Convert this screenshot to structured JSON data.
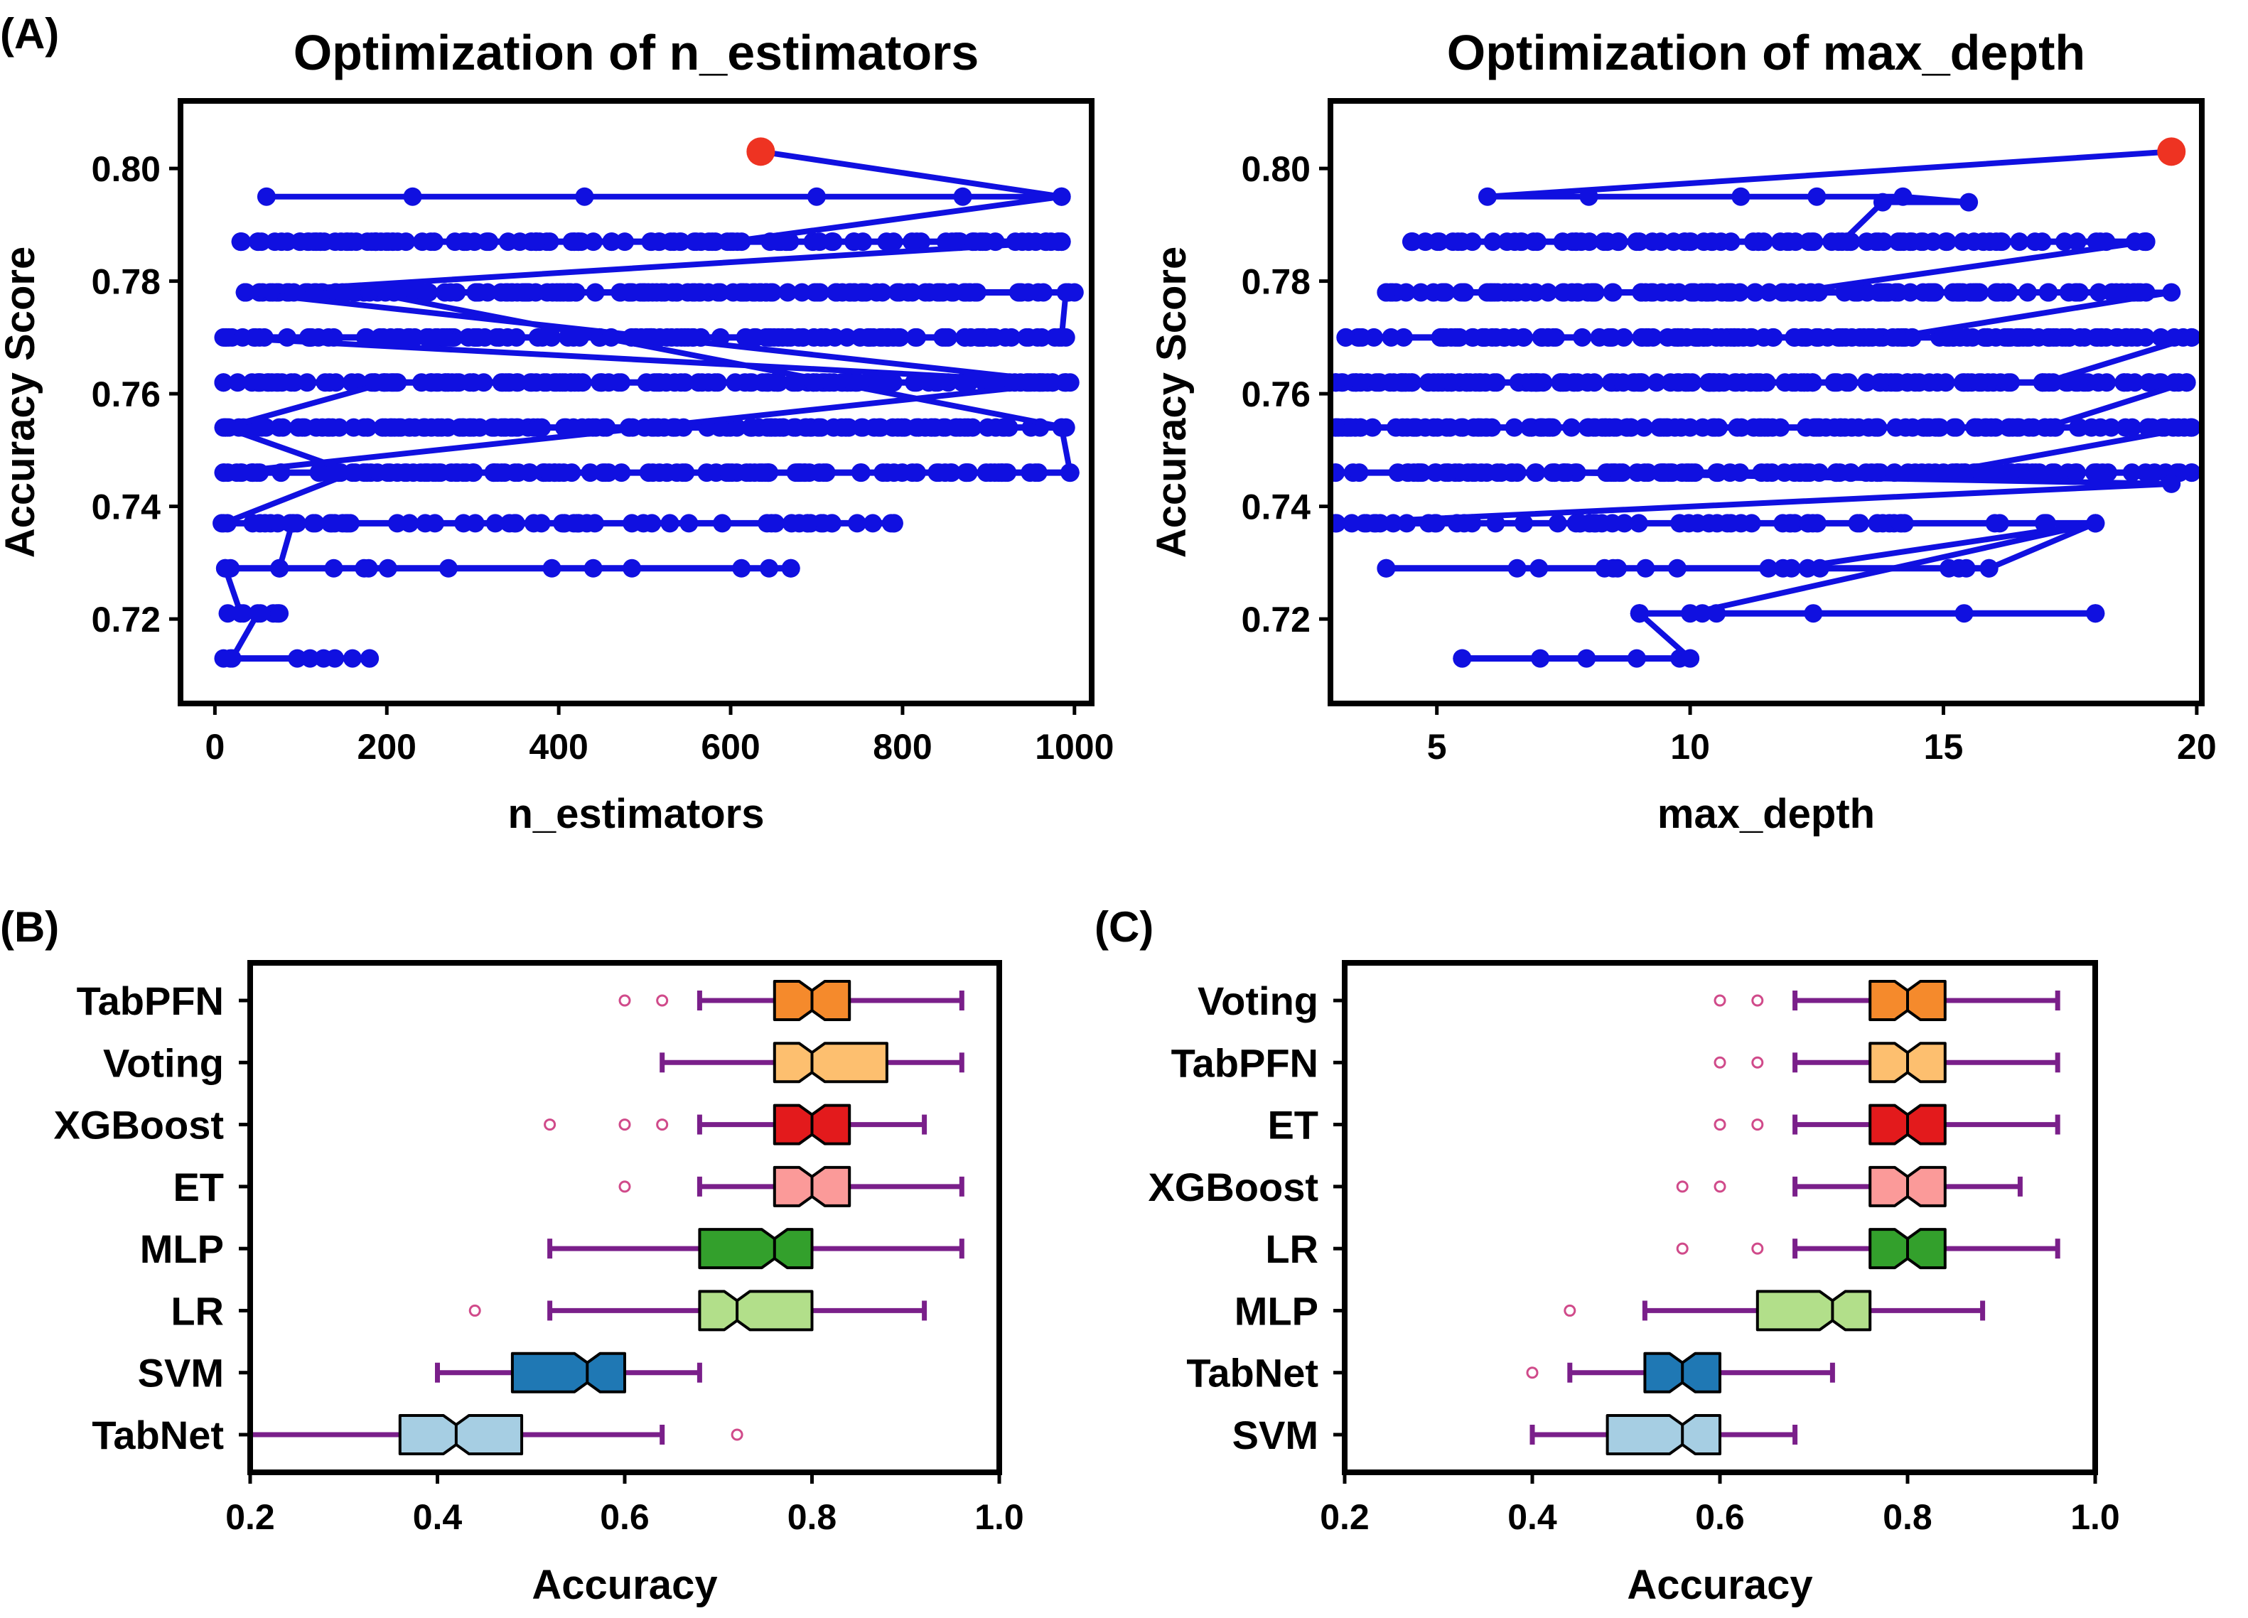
{
  "figure": {
    "panel_labels": {
      "A": "(A)",
      "B": "(B)",
      "C": "(C)"
    }
  },
  "chart_data": [
    {
      "id": "A1",
      "type": "line",
      "title": "Optimization of n_estimators",
      "xlabel": "n_estimators",
      "ylabel": "Accuracy Score",
      "xlim": [
        -40,
        1020
      ],
      "ylim": [
        0.705,
        0.812
      ],
      "xticks": [
        0,
        200,
        400,
        600,
        800,
        1000
      ],
      "yticks": [
        0.72,
        0.74,
        0.76,
        0.78,
        0.8
      ],
      "ytick_labels": [
        "0.72",
        "0.74",
        "0.76",
        "0.78",
        "0.80"
      ],
      "line_color": "#1010e0",
      "best_color": "#ee3322",
      "levels": [
        0.713,
        0.721,
        0.729,
        0.737,
        0.746,
        0.754,
        0.762,
        0.77,
        0.778,
        0.787
      ],
      "level_ranges": [
        [
          10,
          180
        ],
        [
          15,
          75
        ],
        [
          12,
          670
        ],
        [
          8,
          790
        ],
        [
          10,
          995
        ],
        [
          12,
          985
        ],
        [
          10,
          995
        ],
        [
          12,
          990
        ],
        [
          35,
          1000
        ],
        [
          30,
          985
        ]
      ],
      "level_counts": [
        6,
        5,
        12,
        60,
        130,
        150,
        160,
        140,
        150,
        130
      ],
      "path": [
        [
          635,
          0.803
        ],
        [
          985,
          0.795
        ],
        [
          60,
          0.795
        ],
        [
          230,
          0.795
        ],
        [
          430,
          0.795
        ],
        [
          700,
          0.795
        ],
        [
          870,
          0.795
        ],
        [
          985,
          0.795
        ],
        [
          600,
          0.787
        ],
        [
          30,
          0.787
        ],
        [
          985,
          0.787
        ],
        [
          35,
          0.778
        ],
        [
          990,
          0.762
        ],
        [
          10,
          0.77
        ],
        [
          985,
          0.77
        ],
        [
          990,
          0.778
        ],
        [
          180,
          0.778
        ],
        [
          990,
          0.754
        ],
        [
          10,
          0.754
        ],
        [
          985,
          0.754
        ],
        [
          995,
          0.746
        ],
        [
          15,
          0.746
        ],
        [
          990,
          0.762
        ],
        [
          10,
          0.762
        ],
        [
          200,
          0.762
        ],
        [
          12,
          0.754
        ],
        [
          160,
          0.746
        ],
        [
          10,
          0.737
        ],
        [
          790,
          0.737
        ],
        [
          90,
          0.737
        ],
        [
          75,
          0.729
        ],
        [
          670,
          0.729
        ],
        [
          12,
          0.729
        ],
        [
          30,
          0.721
        ],
        [
          50,
          0.721
        ],
        [
          20,
          0.713
        ],
        [
          180,
          0.713
        ]
      ],
      "best_point": {
        "x": 635,
        "y": 0.803
      }
    },
    {
      "id": "A2",
      "type": "line",
      "title": "Optimization of max_depth",
      "xlabel": "max_depth",
      "ylabel": "Accuracy Score",
      "xlim": [
        2.9,
        20.1
      ],
      "ylim": [
        0.705,
        0.812
      ],
      "xticks": [
        5,
        10,
        15,
        20
      ],
      "yticks": [
        0.72,
        0.74,
        0.76,
        0.78,
        0.8
      ],
      "ytick_labels": [
        "0.72",
        "0.74",
        "0.76",
        "0.78",
        "0.80"
      ],
      "line_color": "#1010e0",
      "best_color": "#ee3322",
      "levels": [
        0.713,
        0.721,
        0.729,
        0.737,
        0.746,
        0.754,
        0.762,
        0.77,
        0.778,
        0.787
      ],
      "level_ranges": [
        [
          5.5,
          10
        ],
        [
          9,
          18
        ],
        [
          4,
          15.9
        ],
        [
          3,
          18
        ],
        [
          3,
          19.9
        ],
        [
          3,
          19.9
        ],
        [
          3,
          19.8
        ],
        [
          3.2,
          19.9
        ],
        [
          4,
          19
        ],
        [
          4.5,
          19
        ]
      ],
      "level_counts": [
        4,
        4,
        14,
        60,
        130,
        150,
        160,
        150,
        120,
        90
      ],
      "path": [
        [
          19.5,
          0.803
        ],
        [
          6,
          0.795
        ],
        [
          8,
          0.795
        ],
        [
          11,
          0.795
        ],
        [
          12.5,
          0.795
        ],
        [
          14.2,
          0.795
        ],
        [
          15.5,
          0.794
        ],
        [
          13.8,
          0.794
        ],
        [
          13,
          0.787
        ],
        [
          4.5,
          0.787
        ],
        [
          19,
          0.787
        ],
        [
          12,
          0.778
        ],
        [
          4,
          0.778
        ],
        [
          19.5,
          0.778
        ],
        [
          14,
          0.77
        ],
        [
          3.2,
          0.77
        ],
        [
          19.9,
          0.77
        ],
        [
          17,
          0.762
        ],
        [
          3,
          0.762
        ],
        [
          19.8,
          0.762
        ],
        [
          17,
          0.754
        ],
        [
          3,
          0.754
        ],
        [
          19.9,
          0.754
        ],
        [
          15,
          0.746
        ],
        [
          3,
          0.746
        ],
        [
          19.9,
          0.746
        ],
        [
          7.5,
          0.746
        ],
        [
          19.5,
          0.744
        ],
        [
          3,
          0.737
        ],
        [
          18,
          0.737
        ],
        [
          12,
          0.729
        ],
        [
          4,
          0.729
        ],
        [
          15.9,
          0.729
        ],
        [
          18,
          0.737
        ],
        [
          10,
          0.721
        ],
        [
          9,
          0.721
        ],
        [
          18,
          0.721
        ],
        [
          9,
          0.721
        ],
        [
          10,
          0.713
        ],
        [
          5.5,
          0.713
        ]
      ],
      "best_point": {
        "x": 19.5,
        "y": 0.803
      }
    },
    {
      "id": "B",
      "type": "box",
      "orientation": "horizontal",
      "xlabel": "Accuracy",
      "xlim": [
        0.2,
        1.0
      ],
      "xticks": [
        0.2,
        0.4,
        0.6,
        0.8,
        1.0
      ],
      "xtick_labels": [
        "0.2",
        "0.4",
        "0.6",
        "0.8",
        "1.0"
      ],
      "whisker_color": "#7a1f8a",
      "flier_color": "#d04a8a",
      "categories": [
        "TabPFN",
        "Voting",
        "XGBoost",
        "ET",
        "MLP",
        "LR",
        "SVM",
        "TabNet"
      ],
      "boxes": [
        {
          "label": "TabPFN",
          "whislo": 0.68,
          "q1": 0.76,
          "med": 0.8,
          "q3": 0.84,
          "whishi": 0.96,
          "fliers": [
            0.6,
            0.64
          ],
          "color": "#f58a2c"
        },
        {
          "label": "Voting",
          "whislo": 0.64,
          "q1": 0.76,
          "med": 0.8,
          "q3": 0.88,
          "whishi": 0.96,
          "fliers": [],
          "color": "#fdbf6f"
        },
        {
          "label": "XGBoost",
          "whislo": 0.68,
          "q1": 0.76,
          "med": 0.8,
          "q3": 0.84,
          "whishi": 0.92,
          "fliers": [
            0.52,
            0.6,
            0.64
          ],
          "color": "#e31a1c"
        },
        {
          "label": "ET",
          "whislo": 0.68,
          "q1": 0.76,
          "med": 0.8,
          "q3": 0.84,
          "whishi": 0.96,
          "fliers": [
            0.6
          ],
          "color": "#fb9a99"
        },
        {
          "label": "MLP",
          "whislo": 0.52,
          "q1": 0.68,
          "med": 0.76,
          "q3": 0.8,
          "whishi": 0.96,
          "fliers": [],
          "color": "#33a02c"
        },
        {
          "label": "LR",
          "whislo": 0.52,
          "q1": 0.68,
          "med": 0.72,
          "q3": 0.8,
          "whishi": 0.92,
          "fliers": [
            0.44
          ],
          "color": "#b2df8a"
        },
        {
          "label": "SVM",
          "whislo": 0.4,
          "q1": 0.48,
          "med": 0.56,
          "q3": 0.6,
          "whishi": 0.68,
          "fliers": [],
          "color": "#1f78b4"
        },
        {
          "label": "TabNet",
          "whislo": 0.2,
          "q1": 0.36,
          "med": 0.42,
          "q3": 0.49,
          "whishi": 0.64,
          "fliers": [
            0.72
          ],
          "color": "#a6cee3"
        }
      ]
    },
    {
      "id": "C",
      "type": "box",
      "orientation": "horizontal",
      "xlabel": "Accuracy",
      "xlim": [
        0.2,
        1.0
      ],
      "xticks": [
        0.2,
        0.4,
        0.6,
        0.8,
        1.0
      ],
      "xtick_labels": [
        "0.2",
        "0.4",
        "0.6",
        "0.8",
        "1.0"
      ],
      "whisker_color": "#7a1f8a",
      "flier_color": "#d04a8a",
      "categories": [
        "Voting",
        "TabPFN",
        "ET",
        "XGBoost",
        "LR",
        "MLP",
        "TabNet",
        "SVM"
      ],
      "boxes": [
        {
          "label": "Voting",
          "whislo": 0.68,
          "q1": 0.76,
          "med": 0.8,
          "q3": 0.84,
          "whishi": 0.96,
          "fliers": [
            0.6,
            0.64
          ],
          "color": "#f58a2c"
        },
        {
          "label": "TabPFN",
          "whislo": 0.68,
          "q1": 0.76,
          "med": 0.8,
          "q3": 0.84,
          "whishi": 0.96,
          "fliers": [
            0.6,
            0.64
          ],
          "color": "#fdbf6f"
        },
        {
          "label": "ET",
          "whislo": 0.68,
          "q1": 0.76,
          "med": 0.8,
          "q3": 0.84,
          "whishi": 0.96,
          "fliers": [
            0.6,
            0.64
          ],
          "color": "#e31a1c"
        },
        {
          "label": "XGBoost",
          "whislo": 0.68,
          "q1": 0.76,
          "med": 0.8,
          "q3": 0.84,
          "whishi": 0.92,
          "fliers": [
            0.56,
            0.6
          ],
          "color": "#fb9a99"
        },
        {
          "label": "LR",
          "whislo": 0.68,
          "q1": 0.76,
          "med": 0.8,
          "q3": 0.84,
          "whishi": 0.96,
          "fliers": [
            0.56,
            0.64
          ],
          "color": "#33a02c"
        },
        {
          "label": "MLP",
          "whislo": 0.52,
          "q1": 0.64,
          "med": 0.72,
          "q3": 0.76,
          "whishi": 0.88,
          "fliers": [
            0.44
          ],
          "color": "#b2df8a"
        },
        {
          "label": "TabNet",
          "whislo": 0.44,
          "q1": 0.52,
          "med": 0.56,
          "q3": 0.6,
          "whishi": 0.72,
          "fliers": [
            0.4
          ],
          "color": "#1f78b4"
        },
        {
          "label": "SVM",
          "whislo": 0.4,
          "q1": 0.48,
          "med": 0.56,
          "q3": 0.6,
          "whishi": 0.68,
          "fliers": [],
          "color": "#a6cee3"
        }
      ]
    }
  ]
}
